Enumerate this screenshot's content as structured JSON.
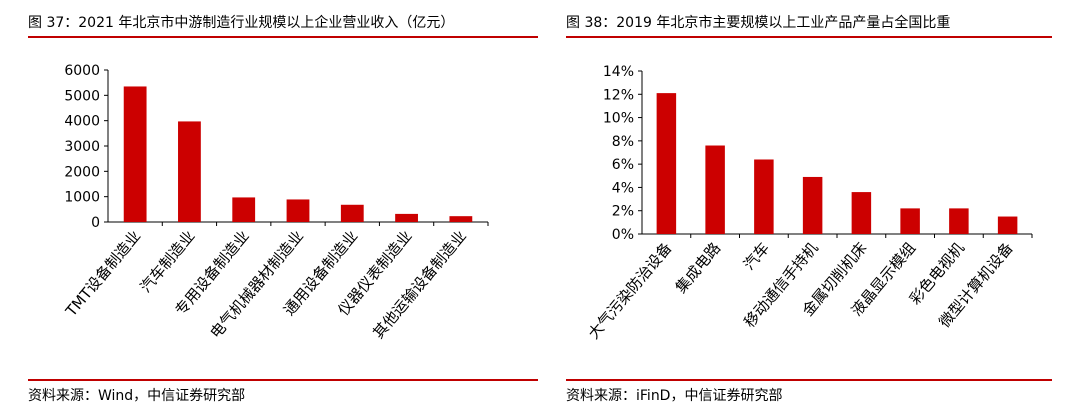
{
  "left": {
    "title": "图 37：2021 年北京市中游制造行业规模以上企业营业收入（亿元）",
    "source": "资料来源：Wind，中信证券研究部",
    "chart_data": {
      "type": "bar",
      "categories": [
        "TMT设备制造业",
        "汽车制造业",
        "专用设备制造业",
        "电气机械器材制造业",
        "通用设备制造业",
        "仪器仪表制造业",
        "其他运输设备制造业"
      ],
      "values": [
        5350,
        3970,
        970,
        890,
        680,
        320,
        230
      ],
      "ylim": [
        0,
        6000
      ],
      "yticks": [
        0,
        1000,
        2000,
        3000,
        4000,
        5000,
        6000
      ],
      "ytick_labels": [
        "0",
        "1000",
        "2000",
        "3000",
        "4000",
        "5000",
        "6000"
      ],
      "bar_color": "#cc0000",
      "grid": false,
      "legend": "none"
    }
  },
  "right": {
    "title": "图 38：2019 年北京市主要规模以上工业产品产量占全国比重",
    "source": "资料来源：iFinD，中信证券研究部",
    "chart_data": {
      "type": "bar",
      "categories": [
        "大气污染防治设备",
        "集成电路",
        "汽车",
        "移动通信手持机",
        "金属切削机床",
        "液晶显示模组",
        "彩色电视机",
        "微型计算机设备"
      ],
      "values": [
        12.1,
        7.6,
        6.4,
        4.9,
        3.6,
        2.2,
        2.2,
        1.5
      ],
      "ylim": [
        0,
        14
      ],
      "yticks": [
        0,
        2,
        4,
        6,
        8,
        10,
        12,
        14
      ],
      "ytick_labels": [
        "0%",
        "2%",
        "4%",
        "6%",
        "8%",
        "10%",
        "12%",
        "14%"
      ],
      "bar_color": "#cc0000",
      "grid": false,
      "legend": "none"
    }
  },
  "theme": {
    "rule_color": "#c00000"
  }
}
